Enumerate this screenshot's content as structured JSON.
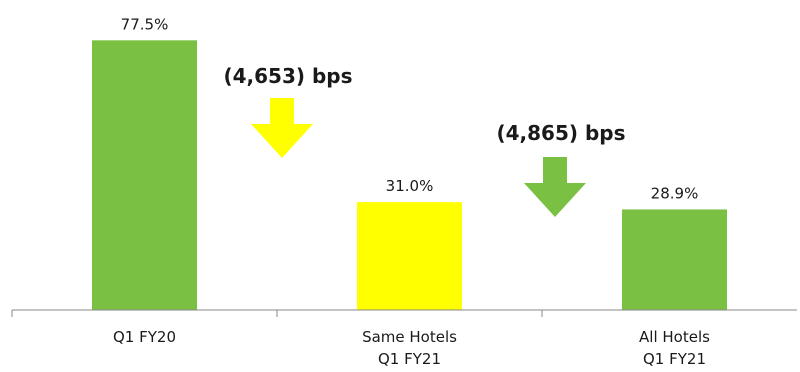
{
  "chart_data": {
    "type": "bar",
    "categories": [
      "Q1 FY20",
      "Same Hotels\nQ1 FY21",
      "All Hotels\nQ1 FY21"
    ],
    "values": [
      77.5,
      31.0,
      28.9
    ],
    "value_labels": [
      "77.5%",
      "31.0%",
      "28.9%"
    ],
    "bar_colors": [
      "#7ac143",
      "#ffff00",
      "#7ac143"
    ],
    "ylim": [
      0,
      100
    ],
    "title": "",
    "xlabel": "",
    "ylabel": "",
    "grid": false,
    "legend": "none",
    "annotations": [
      {
        "text": "(4,653) bps",
        "arrow": "down-arrow",
        "color": "#ffff00",
        "between": [
          0,
          1
        ]
      },
      {
        "text": "(4,865) bps",
        "arrow": "down-arrow",
        "color": "#7ac143",
        "between": [
          1,
          2
        ]
      }
    ]
  },
  "colors": {
    "axis": "#888888",
    "text": "#1a1a1a"
  }
}
